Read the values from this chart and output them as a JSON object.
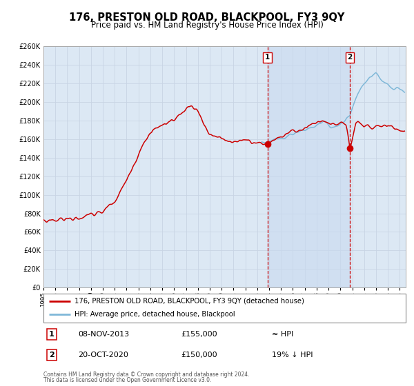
{
  "title": "176, PRESTON OLD ROAD, BLACKPOOL, FY3 9QY",
  "subtitle": "Price paid vs. HM Land Registry's House Price Index (HPI)",
  "legend_line1": "176, PRESTON OLD ROAD, BLACKPOOL, FY3 9QY (detached house)",
  "legend_line2": "HPI: Average price, detached house, Blackpool",
  "footer1": "Contains HM Land Registry data © Crown copyright and database right 2024.",
  "footer2": "This data is licensed under the Open Government Licence v3.0.",
  "annotation1_label": "1",
  "annotation1_date": "08-NOV-2013",
  "annotation1_price": "£155,000",
  "annotation1_hpi": "≈ HPI",
  "annotation2_label": "2",
  "annotation2_date": "20-OCT-2020",
  "annotation2_price": "£150,000",
  "annotation2_hpi": "19% ↓ HPI",
  "hpi_color": "#7fb8d8",
  "price_color": "#cc0000",
  "dot_color": "#cc0000",
  "vline_color": "#cc0000",
  "grid_color": "#c8d4e4",
  "plot_bg": "#dce8f4",
  "shade_color": "#c8daf0",
  "ylim": [
    0,
    260000
  ],
  "ytick_step": 20000,
  "xmin": 1995.0,
  "xmax": 2025.5,
  "sale1_x": 2013.854,
  "sale1_y": 155000,
  "sale2_x": 2020.804,
  "sale2_y": 150000
}
